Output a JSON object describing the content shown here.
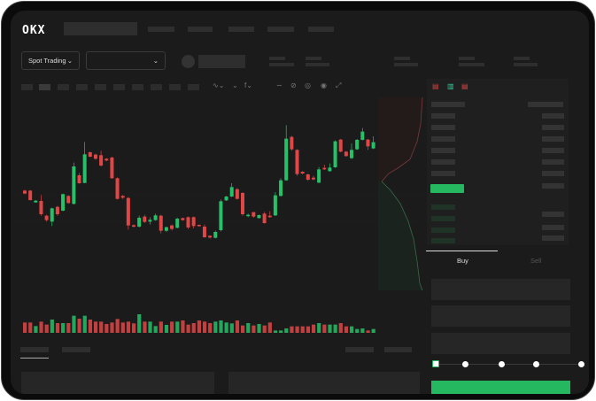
{
  "header": {
    "logo": "OKX",
    "nav_items": 5
  },
  "controls": {
    "market_type": "Spot Trading",
    "pair_select": ""
  },
  "orderbook": {
    "view_icons": [
      "orderbook-both-icon",
      "orderbook-bids-icon",
      "orderbook-asks-icon"
    ]
  },
  "trade": {
    "tabs": [
      "Buy",
      "Sell"
    ],
    "active_tab": "Buy",
    "leverage_slider_value": 0,
    "slider_stops": 5
  },
  "colors": {
    "up": "#26c069",
    "down": "#e04646",
    "background": "#1b1b1b",
    "accent": "#26b861"
  },
  "chart_data": {
    "type": "candlestick",
    "candles": [
      [
        250,
        240,
        253,
        238
      ],
      [
        250,
        218,
        252,
        216
      ],
      [
        210,
        216,
        218,
        209
      ],
      [
        215,
        170,
        235,
        165
      ],
      [
        165,
        150,
        168,
        145
      ],
      [
        145,
        190,
        192,
        130
      ],
      [
        195,
        170,
        198,
        165
      ],
      [
        182,
        238,
        240,
        180
      ],
      [
        232,
        208,
        234,
        205
      ],
      [
        205,
        332,
        345,
        203
      ],
      [
        302,
        275,
        310,
        273
      ],
      [
        276,
        373,
        415,
        275
      ],
      [
        380,
        365,
        382,
        363
      ],
      [
        372,
        358,
        375,
        355
      ],
      [
        370,
        335,
        385,
        332
      ],
      [
        358,
        352,
        360,
        350
      ],
      [
        362,
        292,
        365,
        290
      ],
      [
        292,
        222,
        295,
        220
      ],
      [
        232,
        226,
        235,
        222
      ],
      [
        225,
        132,
        228,
        118
      ],
      [
        133,
        128,
        135,
        125
      ],
      [
        128,
        158,
        165,
        125
      ],
      [
        162,
        144,
        168,
        140
      ],
      [
        145,
        151,
        160,
        135
      ],
      [
        150,
        166,
        172,
        148
      ],
      [
        165,
        114,
        168,
        105
      ],
      [
        114,
        126,
        128,
        110
      ],
      [
        132,
        120,
        135,
        115
      ],
      [
        124,
        155,
        158,
        122
      ],
      [
        157,
        150,
        158,
        148
      ],
      [
        160,
        125,
        162,
        120
      ],
      [
        160,
        130,
        162,
        122
      ],
      [
        134,
        130,
        135,
        128
      ],
      [
        128,
        92,
        135,
        90
      ],
      [
        97,
        91,
        98,
        88
      ],
      [
        90,
        110,
        114,
        88
      ],
      [
        116,
        214,
        220,
        112
      ],
      [
        217,
        230,
        232,
        215
      ],
      [
        230,
        262,
        275,
        228
      ],
      [
        255,
        222,
        258,
        220
      ],
      [
        242,
        170,
        245,
        165
      ],
      [
        164,
        168,
        172,
        160
      ],
      [
        177,
        162,
        178,
        158
      ],
      [
        157,
        167,
        169,
        155
      ],
      [
        172,
        140,
        178,
        138
      ],
      [
        165,
        160,
        180,
        158
      ],
      [
        166,
        234,
        245,
        164
      ],
      [
        232,
        285,
        292,
        230
      ],
      [
        285,
        426,
        472,
        283
      ],
      [
        432,
        390,
        436,
        385
      ],
      [
        388,
        306,
        390,
        300
      ],
      [
        314,
        308,
        316,
        305
      ],
      [
        305,
        287,
        307,
        283
      ],
      [
        294,
        288,
        300,
        285
      ],
      [
        277,
        322,
        330,
        275
      ],
      [
        327,
        322,
        338,
        320
      ],
      [
        316,
        328,
        342,
        314
      ],
      [
        329,
        417,
        420,
        327
      ],
      [
        423,
        382,
        425,
        380
      ],
      [
        382,
        367,
        384,
        365
      ],
      [
        360,
        388,
        410,
        357
      ],
      [
        390,
        422,
        425,
        388
      ],
      [
        422,
        450,
        462,
        420
      ],
      [
        423,
        400,
        425,
        388
      ],
      [
        393,
        414,
        434,
        391
      ]
    ],
    "volume": [
      35,
      35,
      23,
      38,
      28,
      45,
      33,
      33,
      33,
      58,
      48,
      58,
      45,
      38,
      38,
      30,
      35,
      47,
      35,
      38,
      32,
      63,
      38,
      38,
      23,
      38,
      27,
      38,
      38,
      42,
      28,
      33,
      42,
      38,
      33,
      38,
      42,
      35,
      32,
      42,
      25,
      33,
      25,
      30,
      25,
      35,
      8,
      8,
      15,
      22,
      22,
      22,
      22,
      28,
      33,
      28,
      28,
      28,
      33,
      22,
      22,
      13,
      15,
      8,
      13
    ]
  }
}
